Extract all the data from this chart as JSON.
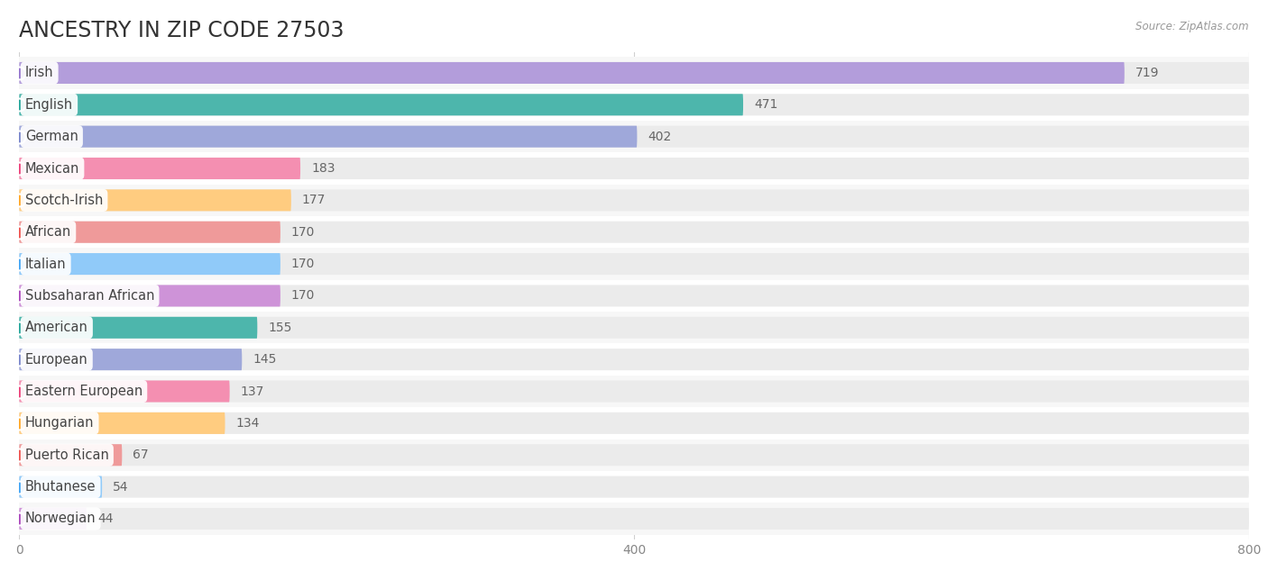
{
  "title": "ANCESTRY IN ZIP CODE 27503",
  "source": "Source: ZipAtlas.com",
  "categories": [
    "Irish",
    "English",
    "German",
    "Mexican",
    "Scotch-Irish",
    "African",
    "Italian",
    "Subsaharan African",
    "American",
    "European",
    "Eastern European",
    "Hungarian",
    "Puerto Rican",
    "Bhutanese",
    "Norwegian"
  ],
  "values": [
    719,
    471,
    402,
    183,
    177,
    170,
    170,
    170,
    155,
    145,
    137,
    134,
    67,
    54,
    44
  ],
  "bar_colors": [
    "#b39ddb",
    "#4db6ac",
    "#9fa8da",
    "#f48fb1",
    "#ffcc80",
    "#ef9a9a",
    "#90caf9",
    "#ce93d8",
    "#4db6ac",
    "#9fa8da",
    "#f48fb1",
    "#ffcc80",
    "#ef9a9a",
    "#90caf9",
    "#ce93d8"
  ],
  "dot_colors": [
    "#9575cd",
    "#26a69a",
    "#7986cb",
    "#ec407a",
    "#ffa726",
    "#ef5350",
    "#42a5f5",
    "#ab47bc",
    "#26a69a",
    "#7986cb",
    "#ec407a",
    "#ffa726",
    "#ef5350",
    "#42a5f5",
    "#ab47bc"
  ],
  "xlim": [
    0,
    800
  ],
  "xticks": [
    0,
    400,
    800
  ],
  "background_color": "#ffffff",
  "row_light": "#f7f7f7",
  "row_dark": "#ffffff",
  "bar_bg_color": "#ebebeb",
  "title_fontsize": 17,
  "label_fontsize": 10.5,
  "value_fontsize": 10
}
